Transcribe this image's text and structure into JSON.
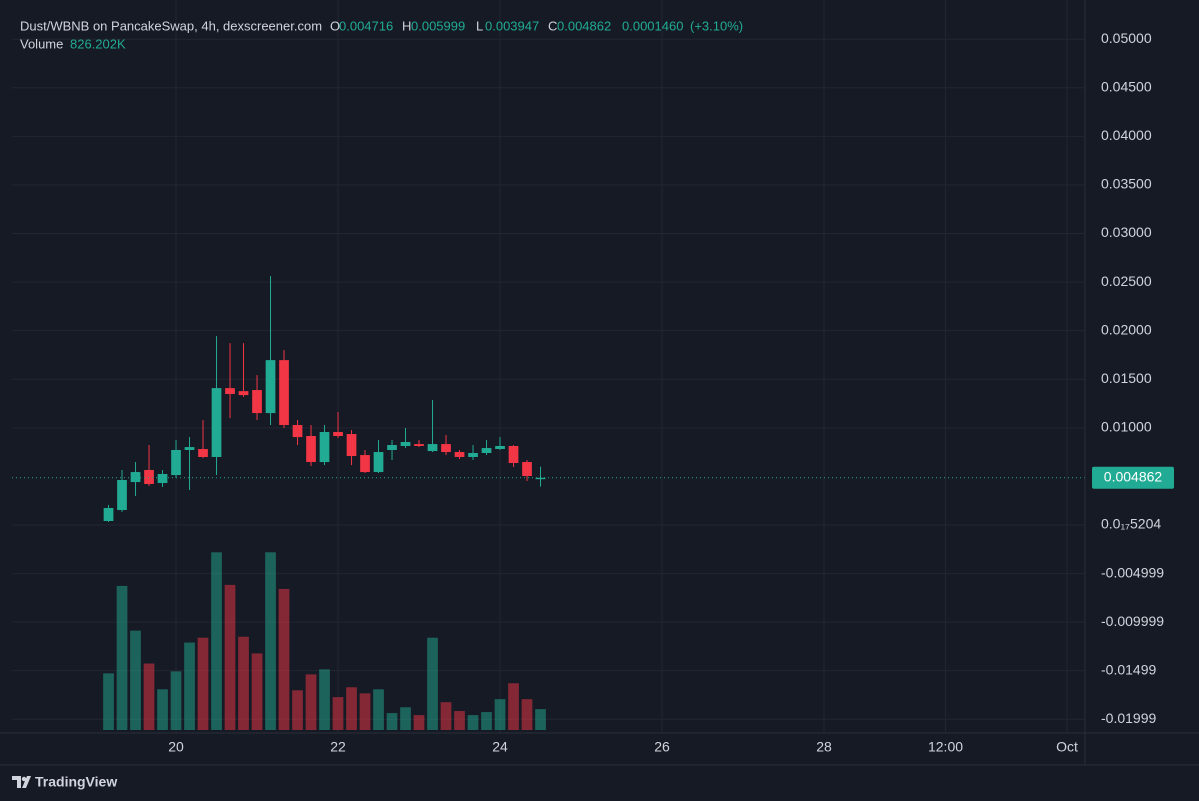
{
  "header": {
    "title": "Dust/WBNB on PancakeSwap, 4h, dexscreener.com",
    "ohlc_labels": [
      "O",
      "H",
      "L",
      "C"
    ],
    "change": "0.0001460",
    "change_pct": "(+3.10%)",
    "volume_label": "Volume",
    "volume": "826.202K"
  },
  "chart_data": {
    "type": "candlestick",
    "x": [
      19.1667,
      19.3333,
      19.5,
      19.6667,
      19.8333,
      20,
      20.1667,
      20.3333,
      20.5,
      20.6667,
      20.8333,
      21,
      21.1667,
      21.3333,
      21.5,
      21.6667,
      21.8333,
      22,
      22.1667,
      22.3333,
      22.5,
      22.6667,
      22.8333,
      23,
      23.1667,
      23.3333,
      23.5,
      23.6667,
      23.8333,
      24,
      24.1667,
      24.3333,
      24.5
    ],
    "open": [
      0.00041,
      0.00154,
      0.00442,
      0.00566,
      0.00432,
      0.00514,
      0.00772,
      0.00782,
      0.007,
      0.01409,
      0.01378,
      0.01389,
      0.01152,
      0.01697,
      0.01029,
      0.00916,
      0.00648,
      0.00957,
      0.00936,
      0.0072,
      0.00545,
      0.00772,
      0.00813,
      0.00833,
      0.00761,
      0.00833,
      0.00751,
      0.007,
      0.00741,
      0.00782,
      0.00813,
      0.00648,
      0.004716
    ],
    "high": [
      0.00206,
      0.00566,
      0.00648,
      0.00823,
      0.00566,
      0.00874,
      0.00905,
      0.0108,
      0.01944,
      0.01872,
      0.01872,
      0.01543,
      0.02562,
      0.018,
      0.0108,
      0.01029,
      0.01029,
      0.01163,
      0.00977,
      0.00772,
      0.00874,
      0.00874,
      0.00998,
      0.00874,
      0.01286,
      0.00926,
      0.00772,
      0.00823,
      0.00874,
      0.00905,
      0.00823,
      0.00669,
      0.005999
    ],
    "low": [
      0.00031,
      0.00134,
      0.00298,
      0.00401,
      0.00391,
      0.00484,
      0.0036,
      0.00689,
      0.00514,
      0.011,
      0.0132,
      0.0108,
      0.01029,
      0.00998,
      0.00823,
      0.00607,
      0.00617,
      0.00895,
      0.00617,
      0.00535,
      0.00535,
      0.00669,
      0.00792,
      0.00802,
      0.00751,
      0.0072,
      0.00679,
      0.00669,
      0.0072,
      0.00772,
      0.00597,
      0.00453,
      0.003947
    ],
    "close": [
      0.00175,
      0.00463,
      0.00545,
      0.00422,
      0.00525,
      0.00772,
      0.00802,
      0.007,
      0.01409,
      0.01348,
      0.01337,
      0.01152,
      0.01697,
      0.01029,
      0.00905,
      0.00648,
      0.00957,
      0.00916,
      0.0071,
      0.00545,
      0.00751,
      0.00823,
      0.00854,
      0.00813,
      0.00833,
      0.00751,
      0.007,
      0.00741,
      0.00792,
      0.00813,
      0.00638,
      0.00504,
      0.004862
    ],
    "volume": {
      "values": [
        2240,
        5700,
        3930,
        2630,
        1610,
        2320,
        3460,
        3650,
        7030,
        5740,
        3690,
        3030,
        7030,
        5580,
        1570,
        2200,
        2400,
        1300,
        1690,
        1450,
        1610,
        670,
        900,
        590,
        3650,
        1100,
        750,
        590,
        710,
        1220,
        1850,
        1220,
        826.202
      ],
      "lim": [
        0,
        7200
      ]
    },
    "up_color": "#22ab94",
    "down_color": "#f23645",
    "ylim": [
      -0.0211,
      0.0528
    ],
    "yticks": [
      {
        "value": 0.05,
        "label": "0.05000"
      },
      {
        "value": 0.045,
        "label": "0.04500"
      },
      {
        "value": 0.04,
        "label": "0.04000"
      },
      {
        "value": 0.035,
        "label": "0.03500"
      },
      {
        "value": 0.03,
        "label": "0.03000"
      },
      {
        "value": 0.025,
        "label": "0.02500"
      },
      {
        "value": 0.02,
        "label": "0.02000"
      },
      {
        "value": 0.015,
        "label": "0.01500"
      },
      {
        "value": 0.01,
        "label": "0.01000"
      },
      {
        "value": 5.204e-18,
        "label": "0.0₁₇5204"
      },
      -0.004999,
      -0.009999,
      -0.01499,
      -0.01999
    ],
    "xlim": [
      17.975,
      31.222
    ],
    "xticks": [
      20,
      22,
      24,
      26,
      28,
      {
        "value": 29.5,
        "label": "12:00"
      },
      {
        "value": 31,
        "label": "Oct"
      }
    ],
    "grid": true
  },
  "footer": "TradingView"
}
